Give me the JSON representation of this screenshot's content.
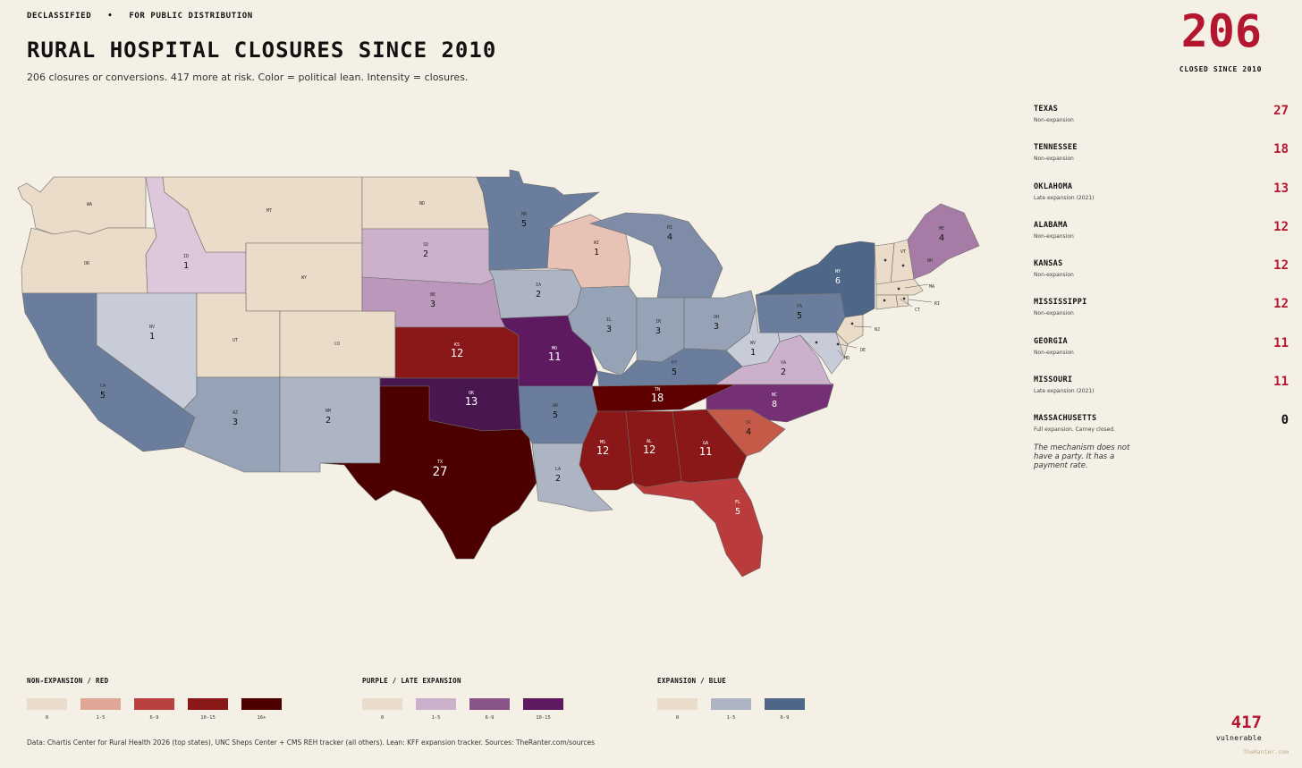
{
  "header": {
    "eyebrow": "DECLASSIFIED   •   FOR PUBLIC DISTRIBUTION",
    "title": "RURAL HOSPITAL CLOSURES SINCE 2010",
    "subtitle": "206 closures or conversions. 417 more at risk. Color = political lean. Intensity = closures.",
    "big_count": "206",
    "big_caption": "CLOSED SINCE 2010"
  },
  "sidebar": {
    "rows": [
      {
        "state": "TEXAS",
        "note": "Non-expansion",
        "value": "27"
      },
      {
        "state": "TENNESSEE",
        "note": "Non-expansion",
        "value": "18"
      },
      {
        "state": "OKLAHOMA",
        "note": "Late expansion (2021)",
        "value": "13"
      },
      {
        "state": "ALABAMA",
        "note": "Non-expansion",
        "value": "12"
      },
      {
        "state": "KANSAS",
        "note": "Non-expansion",
        "value": "12"
      },
      {
        "state": "MISSISSIPPI",
        "note": "Non-expansion",
        "value": "12"
      },
      {
        "state": "GEORGIA",
        "note": "Non-expansion",
        "value": "11"
      },
      {
        "state": "MISSOURI",
        "note": "Late expansion (2021)",
        "value": "11"
      },
      {
        "state": "MASSACHUSETTS",
        "note": "Full expansion. Carney closed.",
        "value": "0"
      }
    ],
    "quote": "The mechanism does not have a party. It has a payment rate."
  },
  "map": {
    "states": [
      {
        "abbr": "WA",
        "count": "",
        "color": "#eadcc9"
      },
      {
        "abbr": "OR",
        "count": "",
        "color": "#eadcc9"
      },
      {
        "abbr": "CA",
        "count": "5",
        "color": "#6b7d9c"
      },
      {
        "abbr": "ID",
        "count": "1",
        "color": "#dcc8da"
      },
      {
        "abbr": "NV",
        "count": "1",
        "color": "#c8ccd8"
      },
      {
        "abbr": "MT",
        "count": "",
        "color": "#eadcc9"
      },
      {
        "abbr": "WY",
        "count": "",
        "color": "#eadcc9"
      },
      {
        "abbr": "UT",
        "count": "",
        "color": "#eadcc9"
      },
      {
        "abbr": "CO",
        "count": "",
        "color": "#eadcc9"
      },
      {
        "abbr": "AZ",
        "count": "3",
        "color": "#96a2b6"
      },
      {
        "abbr": "NM",
        "count": "2",
        "color": "#adb4c4"
      },
      {
        "abbr": "ND",
        "count": "",
        "color": "#eadcc9"
      },
      {
        "abbr": "SD",
        "count": "2",
        "color": "#cbb1cc"
      },
      {
        "abbr": "NE",
        "count": "3",
        "color": "#bb98bb"
      },
      {
        "abbr": "KS",
        "count": "12",
        "color": "#8a1818"
      },
      {
        "abbr": "OK",
        "count": "13",
        "color": "#4a1650"
      },
      {
        "abbr": "TX",
        "count": "27",
        "color": "#4d0000"
      },
      {
        "abbr": "MN",
        "count": "5",
        "color": "#6b7d9c"
      },
      {
        "abbr": "IA",
        "count": "2",
        "color": "#adb4c4"
      },
      {
        "abbr": "MO",
        "count": "11",
        "color": "#5e1a60"
      },
      {
        "abbr": "AR",
        "count": "5",
        "color": "#6b7d9c"
      },
      {
        "abbr": "LA",
        "count": "2",
        "color": "#adb4c4"
      },
      {
        "abbr": "WI",
        "count": "1",
        "color": "#e8c2b5"
      },
      {
        "abbr": "IL",
        "count": "3",
        "color": "#96a2b6"
      },
      {
        "abbr": "MI",
        "count": "4",
        "color": "#7e8ca8"
      },
      {
        "abbr": "IN",
        "count": "3",
        "color": "#96a2b6"
      },
      {
        "abbr": "OH",
        "count": "3",
        "color": "#96a2b6"
      },
      {
        "abbr": "KY",
        "count": "5",
        "color": "#6b7d9c"
      },
      {
        "abbr": "TN",
        "count": "18",
        "color": "#5e0000"
      },
      {
        "abbr": "MS",
        "count": "12",
        "color": "#8a1818"
      },
      {
        "abbr": "AL",
        "count": "12",
        "color": "#8a1818"
      },
      {
        "abbr": "GA",
        "count": "11",
        "color": "#8a1818"
      },
      {
        "abbr": "FL",
        "count": "5",
        "color": "#b93b3b"
      },
      {
        "abbr": "SC",
        "count": "4",
        "color": "#c45a47"
      },
      {
        "abbr": "NC",
        "count": "8",
        "color": "#753075"
      },
      {
        "abbr": "VA",
        "count": "2",
        "color": "#cbb1cc"
      },
      {
        "abbr": "WV",
        "count": "1",
        "color": "#c8ccd8"
      },
      {
        "abbr": "PA",
        "count": "5",
        "color": "#6b7d9c"
      },
      {
        "abbr": "NY",
        "count": "6",
        "color": "#4e6688"
      },
      {
        "abbr": "ME",
        "count": "4",
        "color": "#a67ca6"
      },
      {
        "abbr": "VT",
        "count": "",
        "color": "#eadcc9"
      },
      {
        "abbr": "NH",
        "count": "",
        "color": "#eadcc9"
      },
      {
        "abbr": "MA",
        "count": "",
        "color": "#eadcc9"
      },
      {
        "abbr": "CT",
        "count": "",
        "color": "#eadcc9"
      },
      {
        "abbr": "RI",
        "count": "",
        "color": "#eadcc9"
      },
      {
        "abbr": "NJ",
        "count": "",
        "color": "#eadcc9"
      },
      {
        "abbr": "DE",
        "count": "",
        "color": "#eadcc9"
      },
      {
        "abbr": "MD",
        "count": "",
        "color": "#c8ccd8"
      }
    ]
  },
  "legend": {
    "groups": [
      {
        "title": "NON-EXPANSION / RED",
        "items": [
          {
            "label": "0",
            "color": "#e9dccb"
          },
          {
            "label": "1-5",
            "color": "#dea797"
          },
          {
            "label": "6-9",
            "color": "#b94240"
          },
          {
            "label": "10-15",
            "color": "#8a1818"
          },
          {
            "label": "16+",
            "color": "#4d0000"
          }
        ]
      },
      {
        "title": "PURPLE / LATE EXPANSION",
        "items": [
          {
            "label": "0",
            "color": "#e9dccb"
          },
          {
            "label": "1-5",
            "color": "#cbb1cc"
          },
          {
            "label": "6-9",
            "color": "#895488"
          },
          {
            "label": "10-15",
            "color": "#5e1a60"
          }
        ]
      },
      {
        "title": "EXPANSION / BLUE",
        "items": [
          {
            "label": "0",
            "color": "#e9dccb"
          },
          {
            "label": "1-5",
            "color": "#adb4c4"
          },
          {
            "label": "6-9",
            "color": "#4e6688"
          }
        ]
      }
    ]
  },
  "footer": {
    "source": "Data: Chartis Center for Rural Health 2026 (top states), UNC Sheps Center + CMS REH tracker (all others). Lean: KFF expansion tracker. Sources: TheRanter.com/sources",
    "vuln_count": "417",
    "vuln_label": "vulnerable",
    "credit": "TheRanter.com"
  }
}
